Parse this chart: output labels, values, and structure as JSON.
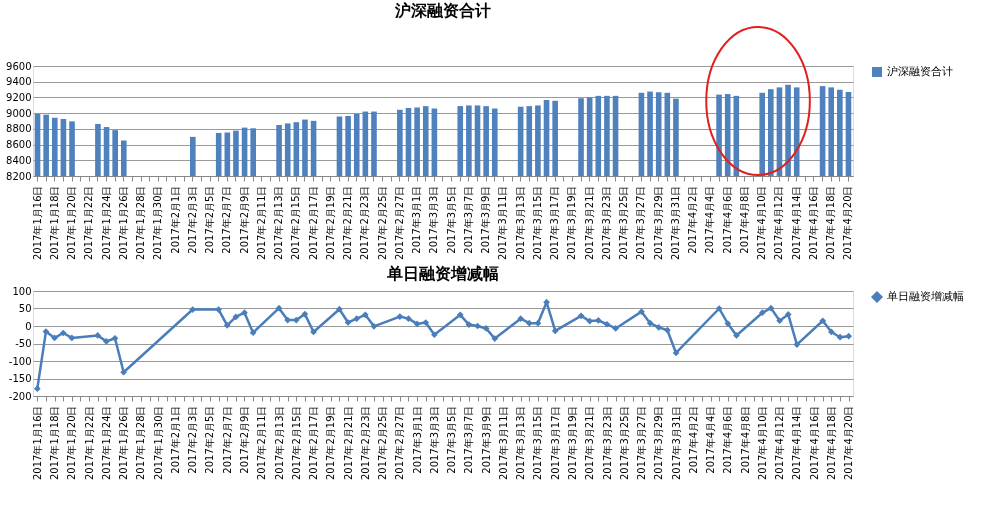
{
  "chart_data": [
    {
      "type": "bar",
      "title": "沪深融资合计",
      "categories": [
        "2017年1月16日",
        null,
        "2017年1月18日",
        null,
        "2017年1月20日",
        null,
        "2017年1月22日",
        null,
        "2017年1月24日",
        null,
        "2017年1月26日",
        null,
        "2017年1月28日",
        null,
        "2017年1月30日",
        null,
        "2017年2月1日",
        null,
        "2017年2月3日",
        null,
        "2017年2月5日",
        null,
        "2017年2月7日",
        null,
        "2017年2月9日",
        null,
        "2017年2月11日",
        null,
        "2017年2月13日",
        null,
        "2017年2月15日",
        null,
        "2017年2月17日",
        null,
        "2017年2月19日",
        null,
        "2017年2月21日",
        null,
        "2017年2月23日",
        null,
        "2017年2月25日",
        null,
        "2017年2月27日",
        null,
        "2017年3月1日",
        null,
        "2017年3月3日",
        null,
        "2017年3月5日",
        null,
        "2017年3月7日",
        null,
        "2017年3月9日",
        null,
        "2017年3月11日",
        null,
        "2017年3月13日",
        null,
        "2017年3月15日",
        null,
        "2017年3月17日",
        null,
        "2017年3月19日",
        null,
        "2017年3月21日",
        null,
        "2017年3月23日",
        null,
        "2017年3月25日",
        null,
        "2017年3月27日",
        null,
        "2017年3月29日",
        null,
        "2017年3月31日",
        null,
        "2017年4月2日",
        null,
        "2017年4月4日",
        null,
        "2017年4月6日",
        null,
        "2017年4月8日",
        null,
        "2017年4月10日",
        null,
        "2017年4月12日",
        null,
        "2017年4月14日",
        null,
        "2017年4月16日",
        null,
        "2017年4月18日",
        null,
        "2017年4月20日"
      ],
      "series": [
        {
          "name": "沪深融资合计",
          "color": "#4f81bd",
          "values": [
            8990,
            8980,
            8941,
            8925,
            8895,
            null,
            null,
            8862,
            8823,
            8784,
            8652,
            null,
            null,
            null,
            null,
            null,
            null,
            null,
            8698,
            null,
            null,
            8748,
            8754,
            8777,
            8816,
            8807,
            null,
            null,
            8849,
            8869,
            8885,
            8918,
            8902,
            null,
            null,
            8957,
            8964,
            8990,
            9020,
            9020,
            null,
            null,
            9043,
            9066,
            9072,
            9089,
            9059,
            null,
            null,
            9090,
            9098,
            9098,
            9089,
            9059,
            null,
            null,
            9082,
            9089,
            9098,
            9167,
            9157,
            null,
            null,
            9190,
            9200,
            9220,
            9220,
            9220,
            null,
            null,
            9259,
            9275,
            9266,
            9259,
            9184,
            null,
            null,
            null,
            null,
            9236,
            9243,
            9220,
            null,
            null,
            9259,
            9305,
            9328,
            9361,
            9328,
            null,
            null,
            9344,
            9328,
            9298,
            9269
          ]
        }
      ],
      "ylim": [
        8200,
        9600
      ],
      "yticks": [
        8200,
        8400,
        8600,
        8800,
        9000,
        9200,
        9400,
        9600
      ],
      "grid": "y",
      "legend": "right"
    },
    {
      "type": "line",
      "title": "单日融资增减幅",
      "categories": [
        "2017年1月16日",
        null,
        "2017年1月18日",
        null,
        "2017年1月20日",
        null,
        "2017年1月22日",
        null,
        "2017年1月24日",
        null,
        "2017年1月26日",
        null,
        "2017年1月28日",
        null,
        "2017年1月30日",
        null,
        "2017年2月1日",
        null,
        "2017年2月3日",
        null,
        "2017年2月5日",
        null,
        "2017年2月7日",
        null,
        "2017年2月9日",
        null,
        "2017年2月11日",
        null,
        "2017年2月13日",
        null,
        "2017年2月15日",
        null,
        "2017年2月17日",
        null,
        "2017年2月19日",
        null,
        "2017年2月21日",
        null,
        "2017年2月23日",
        null,
        "2017年2月25日",
        null,
        "2017年2月27日",
        null,
        "2017年3月1日",
        null,
        "2017年3月3日",
        null,
        "2017年3月5日",
        null,
        "2017年3月7日",
        null,
        "2017年3月9日",
        null,
        "2017年3月11日",
        null,
        "2017年3月13日",
        null,
        "2017年3月15日",
        null,
        "2017年3月17日",
        null,
        "2017年3月19日",
        null,
        "2017年3月21日",
        null,
        "2017年3月23日",
        null,
        "2017年3月25日",
        null,
        "2017年3月27日",
        null,
        "2017年3月29日",
        null,
        "2017年3月31日",
        null,
        "2017年4月2日",
        null,
        "2017年4月4日",
        null,
        "2017年4月6日",
        null,
        "2017年4月8日",
        null,
        "2017年4月10日",
        null,
        "2017年4月12日",
        null,
        "2017年4月14日",
        null,
        "2017年4月16日",
        null,
        "2017年4月18日",
        null,
        "2017年4月20日"
      ],
      "series": [
        {
          "name": "单日融资增减幅",
          "color": "#4a7ebb",
          "values": [
            -179,
            -16,
            -34,
            -20,
            -34,
            null,
            null,
            -27,
            -44,
            -35,
            -132,
            null,
            null,
            null,
            null,
            null,
            null,
            null,
            47,
            null,
            null,
            47,
            2,
            26,
            38,
            -19,
            null,
            null,
            51,
            17,
            17,
            34,
            -17,
            null,
            null,
            48,
            10,
            21,
            32,
            -1,
            null,
            null,
            27,
            21,
            6,
            10,
            -25,
            null,
            null,
            32,
            4,
            0,
            -7,
            -36,
            null,
            null,
            21,
            8,
            8,
            68,
            -14,
            null,
            null,
            29,
            14,
            16,
            5,
            -7,
            null,
            null,
            41,
            8,
            -4,
            -12,
            -77,
            null,
            null,
            null,
            null,
            50,
            7,
            -27,
            null,
            null,
            38,
            51,
            15,
            33,
            -53,
            null,
            null,
            15,
            -17,
            -32,
            -29
          ]
        }
      ],
      "ylim": [
        -200,
        100
      ],
      "yticks": [
        -200,
        -150,
        -100,
        -50,
        0,
        50,
        100
      ],
      "grid": "y",
      "legend": "right",
      "marker": "diamond"
    }
  ]
}
